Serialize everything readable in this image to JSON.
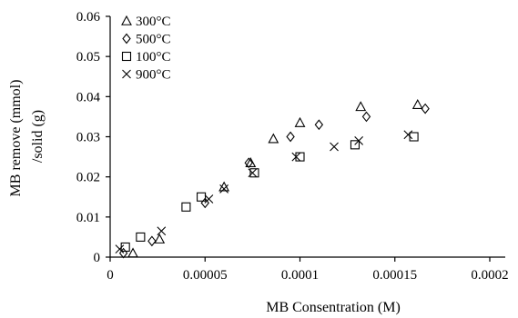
{
  "chart_data": {
    "type": "scatter",
    "title": "",
    "xlabel": "MB Consentration (M)",
    "ylabel_lines": [
      "MB remove (mmol)",
      "/solid (g)"
    ],
    "xlim": [
      0,
      0.00022
    ],
    "ylim": [
      0,
      0.06
    ],
    "x_ticks": [
      0,
      5e-05,
      0.0001,
      0.00015,
      0.0002
    ],
    "x_tick_labels": [
      "0",
      "0.00005",
      "0.0001",
      "0.00015",
      "0.0002"
    ],
    "y_ticks": [
      0,
      0.01,
      0.02,
      0.03,
      0.04,
      0.05,
      0.06
    ],
    "y_tick_labels": [
      "0",
      "0.01",
      "0.02",
      "0.03",
      "0.04",
      "0.05",
      "0.06"
    ],
    "grid": false,
    "legend_position": "top-left",
    "series": [
      {
        "name": "300°C",
        "marker": "triangle",
        "points": [
          {
            "x": 1.2e-05,
            "y": 0.001
          },
          {
            "x": 2.6e-05,
            "y": 0.0045
          },
          {
            "x": 6e-05,
            "y": 0.0175
          },
          {
            "x": 7.4e-05,
            "y": 0.0235
          },
          {
            "x": 8.6e-05,
            "y": 0.0295
          },
          {
            "x": 0.0001,
            "y": 0.0335
          },
          {
            "x": 0.000132,
            "y": 0.0375
          },
          {
            "x": 0.000162,
            "y": 0.038
          }
        ]
      },
      {
        "name": "500°C",
        "marker": "diamond",
        "points": [
          {
            "x": 7e-06,
            "y": 0.001
          },
          {
            "x": 2.2e-05,
            "y": 0.004
          },
          {
            "x": 5e-05,
            "y": 0.0135
          },
          {
            "x": 7.3e-05,
            "y": 0.0235
          },
          {
            "x": 9.5e-05,
            "y": 0.03
          },
          {
            "x": 0.00011,
            "y": 0.033
          },
          {
            "x": 0.000135,
            "y": 0.035
          },
          {
            "x": 0.000166,
            "y": 0.037
          }
        ]
      },
      {
        "name": "100°C",
        "marker": "square",
        "points": [
          {
            "x": 8e-06,
            "y": 0.0025
          },
          {
            "x": 1.6e-05,
            "y": 0.005
          },
          {
            "x": 4e-05,
            "y": 0.0125
          },
          {
            "x": 4.8e-05,
            "y": 0.015
          },
          {
            "x": 7.6e-05,
            "y": 0.021
          },
          {
            "x": 0.0001,
            "y": 0.025
          },
          {
            "x": 0.000129,
            "y": 0.028
          },
          {
            "x": 0.00016,
            "y": 0.03
          }
        ]
      },
      {
        "name": "900°C",
        "marker": "x",
        "points": [
          {
            "x": 5e-06,
            "y": 0.002
          },
          {
            "x": 2.7e-05,
            "y": 0.0065
          },
          {
            "x": 5.2e-05,
            "y": 0.0145
          },
          {
            "x": 6e-05,
            "y": 0.017
          },
          {
            "x": 7.5e-05,
            "y": 0.021
          },
          {
            "x": 9.8e-05,
            "y": 0.025
          },
          {
            "x": 0.000118,
            "y": 0.0275
          },
          {
            "x": 0.000131,
            "y": 0.029
          },
          {
            "x": 0.000157,
            "y": 0.0305
          }
        ]
      }
    ]
  }
}
